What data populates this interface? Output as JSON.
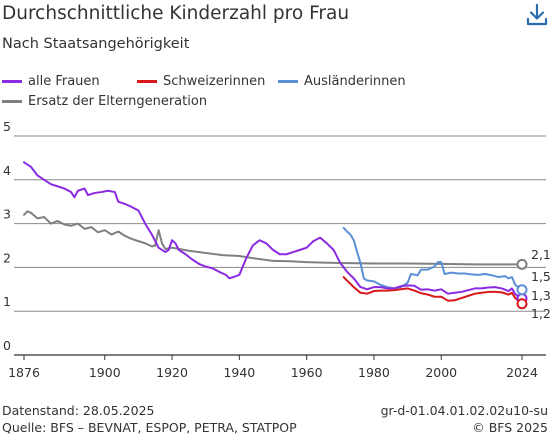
{
  "header": {
    "title": "Durchschnittliche Kinderzahl pro Frau",
    "subtitle": "Nach Staatsangehörigkeit",
    "download_icon": "download-icon"
  },
  "legend": {
    "items": [
      {
        "label": "alle Frauen",
        "color": "#8a2be2"
      },
      {
        "label": "Schweizerinnen",
        "color": "#d7191c"
      },
      {
        "label": "Ausländerinnen",
        "color": "#5b8fd6"
      },
      {
        "label": "Ersatz der Elterngeneration",
        "color": "#808080"
      }
    ]
  },
  "chart_data": {
    "type": "line",
    "title": "Durchschnittliche Kinderzahl pro Frau",
    "subtitle": "Nach Staatsangehörigkeit",
    "xlim": [
      1876,
      2024
    ],
    "ylim": [
      0,
      5
    ],
    "x_ticks": [
      "1876",
      "1900",
      "1920",
      "1940",
      "1960",
      "1980",
      "2000",
      "2024"
    ],
    "y_ticks": [
      "0",
      "1",
      "2",
      "3",
      "4",
      "5"
    ],
    "grid": "horizontal",
    "legend_position": "top-left",
    "series": [
      {
        "name": "alle Frauen",
        "color": "#8a2be2",
        "end_label": "1,3",
        "points": [
          [
            1876,
            4.4
          ],
          [
            1878,
            4.3
          ],
          [
            1880,
            4.1
          ],
          [
            1882,
            4.0
          ],
          [
            1884,
            3.9
          ],
          [
            1886,
            3.85
          ],
          [
            1888,
            3.8
          ],
          [
            1890,
            3.72
          ],
          [
            1891,
            3.6
          ],
          [
            1892,
            3.75
          ],
          [
            1894,
            3.8
          ],
          [
            1895,
            3.65
          ],
          [
            1897,
            3.7
          ],
          [
            1899,
            3.72
          ],
          [
            1901,
            3.75
          ],
          [
            1903,
            3.72
          ],
          [
            1904,
            3.5
          ],
          [
            1906,
            3.45
          ],
          [
            1908,
            3.38
          ],
          [
            1910,
            3.3
          ],
          [
            1912,
            3.0
          ],
          [
            1914,
            2.75
          ],
          [
            1916,
            2.45
          ],
          [
            1918,
            2.35
          ],
          [
            1919,
            2.4
          ],
          [
            1920,
            2.62
          ],
          [
            1921,
            2.55
          ],
          [
            1922,
            2.4
          ],
          [
            1924,
            2.3
          ],
          [
            1926,
            2.18
          ],
          [
            1928,
            2.08
          ],
          [
            1930,
            2.02
          ],
          [
            1932,
            1.98
          ],
          [
            1934,
            1.9
          ],
          [
            1936,
            1.83
          ],
          [
            1937,
            1.75
          ],
          [
            1939,
            1.8
          ],
          [
            1940,
            1.83
          ],
          [
            1942,
            2.2
          ],
          [
            1944,
            2.5
          ],
          [
            1946,
            2.62
          ],
          [
            1948,
            2.55
          ],
          [
            1950,
            2.4
          ],
          [
            1952,
            2.3
          ],
          [
            1954,
            2.3
          ],
          [
            1956,
            2.35
          ],
          [
            1958,
            2.4
          ],
          [
            1960,
            2.45
          ],
          [
            1962,
            2.6
          ],
          [
            1964,
            2.68
          ],
          [
            1966,
            2.55
          ],
          [
            1968,
            2.4
          ],
          [
            1970,
            2.1
          ],
          [
            1972,
            1.9
          ],
          [
            1974,
            1.75
          ],
          [
            1976,
            1.55
          ],
          [
            1978,
            1.5
          ],
          [
            1980,
            1.55
          ],
          [
            1982,
            1.55
          ],
          [
            1984,
            1.52
          ],
          [
            1986,
            1.52
          ],
          [
            1988,
            1.57
          ],
          [
            1990,
            1.59
          ],
          [
            1992,
            1.58
          ],
          [
            1994,
            1.49
          ],
          [
            1996,
            1.5
          ],
          [
            1998,
            1.47
          ],
          [
            2000,
            1.5
          ],
          [
            2002,
            1.4
          ],
          [
            2004,
            1.42
          ],
          [
            2006,
            1.44
          ],
          [
            2008,
            1.48
          ],
          [
            2010,
            1.52
          ],
          [
            2012,
            1.52
          ],
          [
            2014,
            1.54
          ],
          [
            2016,
            1.55
          ],
          [
            2018,
            1.52
          ],
          [
            2020,
            1.46
          ],
          [
            2021,
            1.52
          ],
          [
            2022,
            1.39
          ],
          [
            2024,
            1.29
          ]
        ]
      },
      {
        "name": "Schweizerinnen",
        "color": "#d7191c",
        "end_label": "1,2",
        "points": [
          [
            1971,
            1.78
          ],
          [
            1972,
            1.7
          ],
          [
            1974,
            1.55
          ],
          [
            1976,
            1.42
          ],
          [
            1978,
            1.4
          ],
          [
            1980,
            1.46
          ],
          [
            1982,
            1.47
          ],
          [
            1984,
            1.47
          ],
          [
            1986,
            1.48
          ],
          [
            1988,
            1.5
          ],
          [
            1990,
            1.52
          ],
          [
            1992,
            1.47
          ],
          [
            1994,
            1.41
          ],
          [
            1996,
            1.38
          ],
          [
            1998,
            1.33
          ],
          [
            2000,
            1.33
          ],
          [
            2002,
            1.24
          ],
          [
            2004,
            1.25
          ],
          [
            2006,
            1.3
          ],
          [
            2008,
            1.35
          ],
          [
            2010,
            1.4
          ],
          [
            2012,
            1.42
          ],
          [
            2014,
            1.44
          ],
          [
            2016,
            1.44
          ],
          [
            2018,
            1.43
          ],
          [
            2020,
            1.38
          ],
          [
            2021,
            1.42
          ],
          [
            2022,
            1.3
          ],
          [
            2024,
            1.17
          ]
        ]
      },
      {
        "name": "Ausländerinnen",
        "color": "#5b8fd6",
        "end_label": "1,5",
        "points": [
          [
            1971,
            2.9
          ],
          [
            1972,
            2.82
          ],
          [
            1973,
            2.75
          ],
          [
            1974,
            2.62
          ],
          [
            1975,
            2.35
          ],
          [
            1976,
            2.1
          ],
          [
            1977,
            1.75
          ],
          [
            1978,
            1.7
          ],
          [
            1980,
            1.68
          ],
          [
            1982,
            1.6
          ],
          [
            1984,
            1.55
          ],
          [
            1986,
            1.52
          ],
          [
            1988,
            1.55
          ],
          [
            1990,
            1.65
          ],
          [
            1991,
            1.85
          ],
          [
            1993,
            1.82
          ],
          [
            1994,
            1.95
          ],
          [
            1996,
            1.95
          ],
          [
            1998,
            2.02
          ],
          [
            1999,
            2.12
          ],
          [
            2000,
            2.12
          ],
          [
            2001,
            1.85
          ],
          [
            2003,
            1.88
          ],
          [
            2005,
            1.86
          ],
          [
            2007,
            1.86
          ],
          [
            2009,
            1.84
          ],
          [
            2011,
            1.83
          ],
          [
            2013,
            1.85
          ],
          [
            2015,
            1.82
          ],
          [
            2017,
            1.78
          ],
          [
            2019,
            1.8
          ],
          [
            2020,
            1.75
          ],
          [
            2021,
            1.78
          ],
          [
            2022,
            1.6
          ],
          [
            2024,
            1.49
          ]
        ]
      },
      {
        "name": "Ersatz der Elterngeneration",
        "color": "#808080",
        "end_label": "2,1",
        "points": [
          [
            1876,
            3.2
          ],
          [
            1877,
            3.28
          ],
          [
            1878,
            3.25
          ],
          [
            1880,
            3.12
          ],
          [
            1882,
            3.15
          ],
          [
            1884,
            3.0
          ],
          [
            1886,
            3.06
          ],
          [
            1888,
            2.98
          ],
          [
            1890,
            2.95
          ],
          [
            1892,
            3.0
          ],
          [
            1894,
            2.88
          ],
          [
            1896,
            2.92
          ],
          [
            1898,
            2.8
          ],
          [
            1900,
            2.85
          ],
          [
            1902,
            2.75
          ],
          [
            1904,
            2.82
          ],
          [
            1906,
            2.72
          ],
          [
            1908,
            2.65
          ],
          [
            1910,
            2.6
          ],
          [
            1912,
            2.55
          ],
          [
            1914,
            2.48
          ],
          [
            1915,
            2.5
          ],
          [
            1916,
            2.85
          ],
          [
            1917,
            2.55
          ],
          [
            1918,
            2.42
          ],
          [
            1920,
            2.45
          ],
          [
            1925,
            2.38
          ],
          [
            1930,
            2.33
          ],
          [
            1935,
            2.28
          ],
          [
            1940,
            2.26
          ],
          [
            1945,
            2.2
          ],
          [
            1950,
            2.15
          ],
          [
            1955,
            2.14
          ],
          [
            1960,
            2.12
          ],
          [
            1965,
            2.11
          ],
          [
            1970,
            2.1
          ],
          [
            1980,
            2.09
          ],
          [
            1990,
            2.09
          ],
          [
            2000,
            2.08
          ],
          [
            2010,
            2.07
          ],
          [
            2024,
            2.07
          ]
        ]
      }
    ]
  },
  "footer": {
    "datestand": "Datenstand: 28.05.2025",
    "source": "Quelle: BFS – BEVNAT, ESPOP, PETRA, STATPOP",
    "code": "gr-d-01.04.01.02.02u10-su",
    "copyright": "© BFS 2025"
  }
}
